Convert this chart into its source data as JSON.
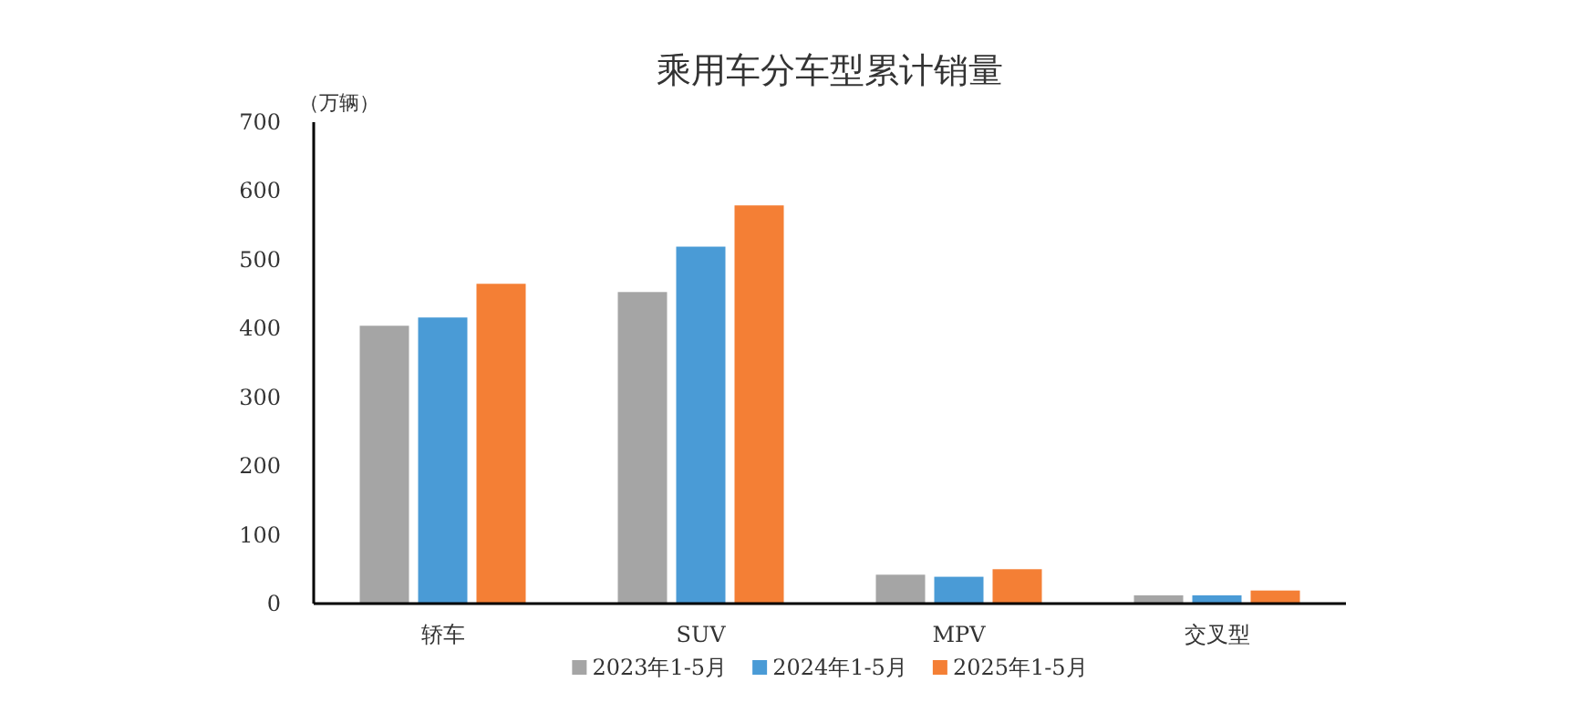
{
  "chart_data": {
    "type": "bar",
    "title": "乘用车分车型累计销量",
    "ylabel": "（万辆）",
    "categories": [
      "轿车",
      "SUV",
      "MPV",
      "交叉型"
    ],
    "series": [
      {
        "name": "2023年1-5月",
        "color": "#a5a5a5",
        "values": [
          404,
          453,
          42,
          12
        ]
      },
      {
        "name": "2024年1-5月",
        "color": "#4a9bd6",
        "values": [
          416,
          519,
          39,
          12
        ]
      },
      {
        "name": "2025年1-5月",
        "color": "#f47f35",
        "values": [
          465,
          579,
          50,
          19
        ]
      }
    ],
    "ylim": [
      0,
      700
    ],
    "yticks": [
      0,
      100,
      200,
      300,
      400,
      500,
      600,
      700
    ],
    "grid": false,
    "legend": "bottom"
  }
}
